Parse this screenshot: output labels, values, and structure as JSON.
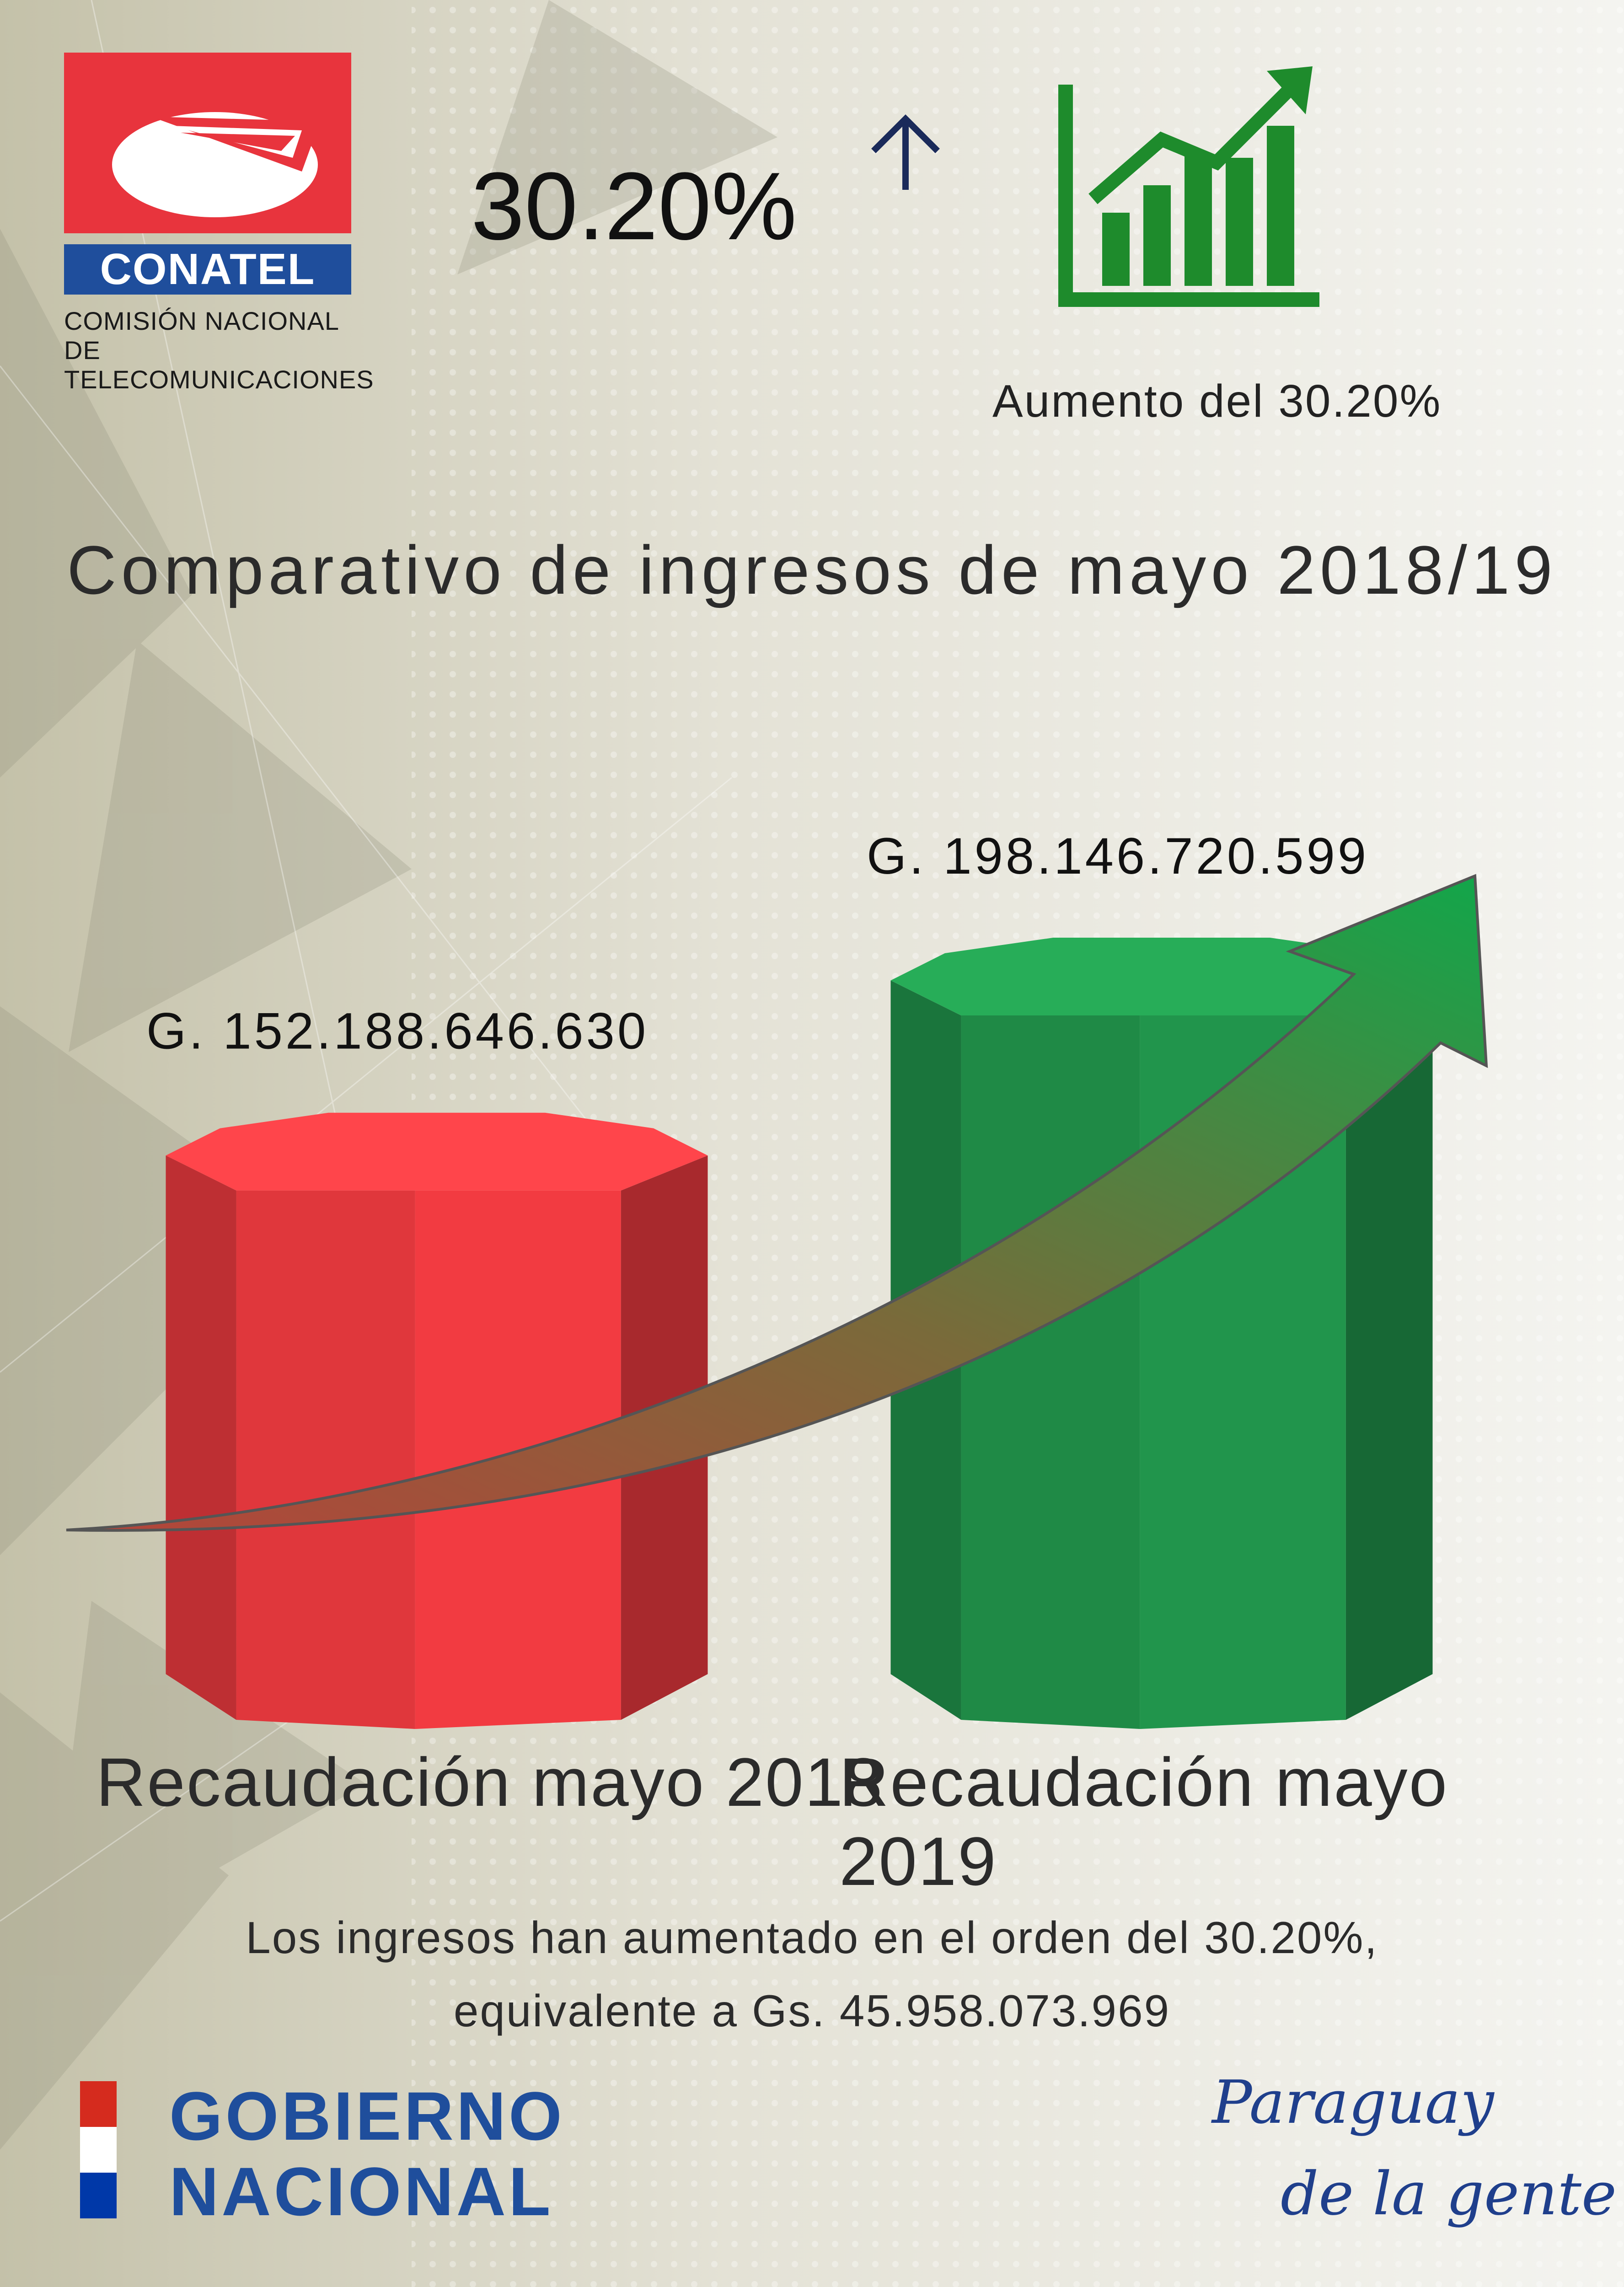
{
  "logo": {
    "name": "CONATEL",
    "subtitle_line1": "COMISIÓN NACIONAL DE",
    "subtitle_line2": "TELECOMUNICACIONES",
    "red": "#e8343d",
    "blue": "#1f4e9c"
  },
  "header": {
    "percent": "30.20%",
    "arrow_icon": "arrow-up-icon",
    "growth_icon": "growth-chart-icon",
    "caption": "Aumento del 30.20%"
  },
  "chart_data": {
    "type": "bar",
    "title": "Comparativo de ingresos de mayo 2018/19",
    "categories": [
      "Recaudación mayo 2018",
      "Recaudación mayo 2019"
    ],
    "values": [
      152188646630,
      198146720599
    ],
    "data_labels": [
      "G. 152.188.646.630",
      "G. 198.146.720.599"
    ],
    "colors": [
      "#e0373c",
      "#1f8a46"
    ],
    "xlabel": "",
    "ylabel": "",
    "grid": false,
    "trend_arrow": "increase"
  },
  "summary": {
    "line1": "Los ingresos han aumentado en el orden del 30.20%,",
    "line2": "equivalente a Gs. 45.958.073.969"
  },
  "footer": {
    "government_line1": "GOBIERNO",
    "government_line2": "NACIONAL",
    "slogan_line1": "Paraguay",
    "slogan_line2": "de la gente",
    "flag_colors": [
      "#d52b1e",
      "#ffffff",
      "#0038a8"
    ]
  }
}
